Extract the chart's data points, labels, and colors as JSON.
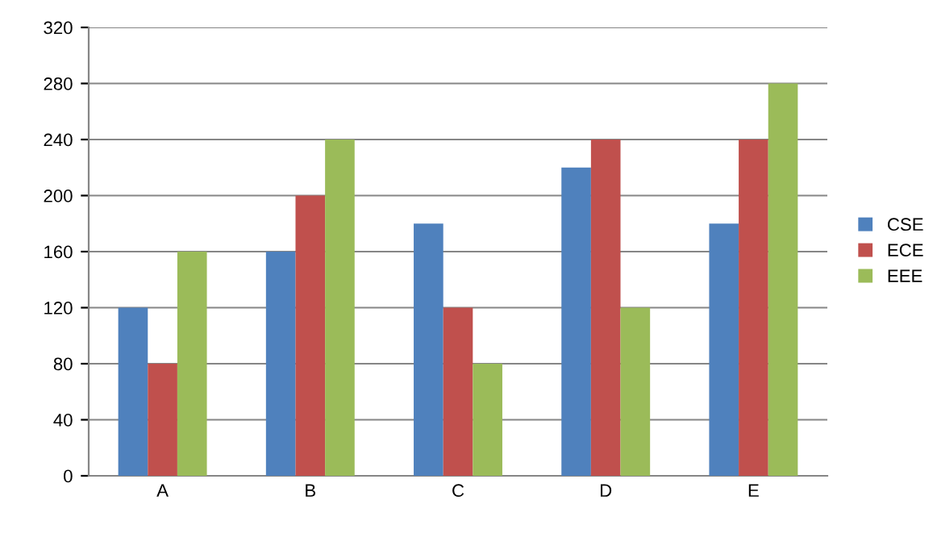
{
  "chart_data": {
    "type": "bar",
    "categories": [
      "A",
      "B",
      "C",
      "D",
      "E"
    ],
    "series": [
      {
        "name": "CSE",
        "color": "#4f81bd",
        "values": [
          120,
          160,
          180,
          220,
          180
        ]
      },
      {
        "name": "ECE",
        "color": "#c0504d",
        "values": [
          80,
          200,
          120,
          240,
          240
        ]
      },
      {
        "name": "EEE",
        "color": "#9bbb59",
        "values": [
          160,
          240,
          80,
          120,
          280
        ]
      }
    ],
    "ylim": [
      0,
      320
    ],
    "yticks": [
      0,
      40,
      80,
      120,
      160,
      200,
      240,
      280,
      320
    ],
    "grid": "y",
    "legend": "right"
  }
}
